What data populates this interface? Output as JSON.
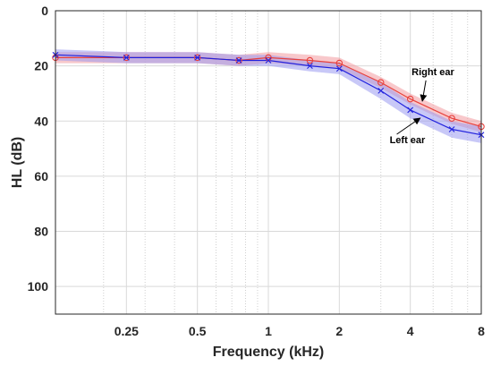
{
  "chart_data": {
    "type": "line",
    "xlabel": "Frequency (kHz)",
    "ylabel": "HL (dB)",
    "x_scale": "log",
    "xlim": [
      0.125,
      8
    ],
    "ylim": [
      0,
      110
    ],
    "y_reversed": true,
    "x_ticks": [
      {
        "value": 0.25,
        "label": "0.25"
      },
      {
        "value": 0.5,
        "label": "0.5"
      },
      {
        "value": 1,
        "label": "1"
      },
      {
        "value": 2,
        "label": "2"
      },
      {
        "value": 4,
        "label": "4"
      },
      {
        "value": 8,
        "label": "8"
      }
    ],
    "y_ticks": [
      {
        "value": 0,
        "label": "0"
      },
      {
        "value": 20,
        "label": "20"
      },
      {
        "value": 40,
        "label": "40"
      },
      {
        "value": 60,
        "label": "60"
      },
      {
        "value": 80,
        "label": "80"
      },
      {
        "value": 100,
        "label": "100"
      }
    ],
    "grid": true,
    "series": [
      {
        "name": "Right ear",
        "marker": "circle",
        "color": "#e8413c",
        "band_color": "#f29aa0",
        "x": [
          0.125,
          0.25,
          0.5,
          0.75,
          1,
          1.5,
          2,
          3,
          4,
          6,
          8
        ],
        "y": [
          17,
          17,
          17,
          18,
          17,
          18,
          19,
          26,
          32,
          39,
          42
        ],
        "band": [
          2,
          2,
          2,
          2,
          2,
          2,
          2,
          2,
          2,
          2,
          2
        ]
      },
      {
        "name": "Left ear",
        "marker": "x",
        "color": "#2222dd",
        "band_color": "#9b9bf0",
        "x": [
          0.125,
          0.25,
          0.5,
          0.75,
          1,
          1.5,
          2,
          3,
          4,
          6,
          8
        ],
        "y": [
          16,
          17,
          17,
          18,
          18,
          20,
          21,
          29,
          36,
          43,
          45
        ],
        "band": [
          2,
          2,
          2,
          2,
          2,
          2,
          2,
          3,
          3,
          3,
          3
        ]
      }
    ],
    "annotations": [
      {
        "text": "Right ear",
        "series": 0,
        "arrow_to_x": 4.5
      },
      {
        "text": "Left ear",
        "series": 1,
        "arrow_to_x": 4.4
      }
    ]
  }
}
